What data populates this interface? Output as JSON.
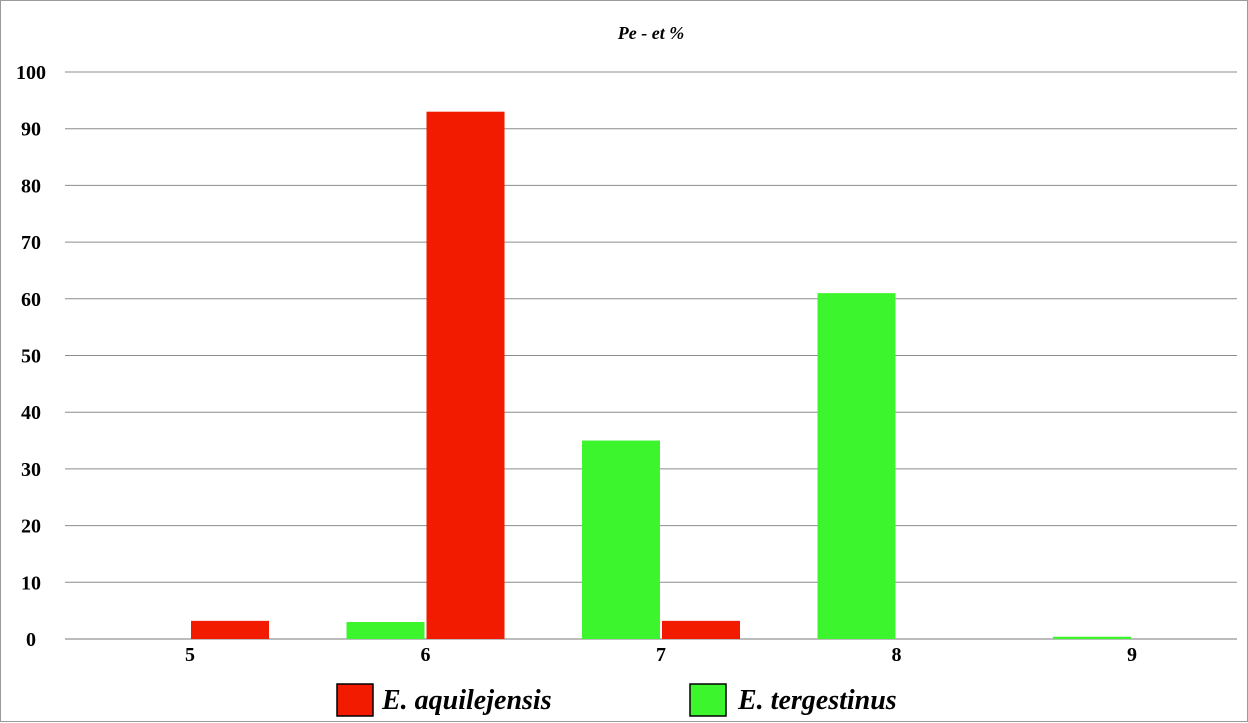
{
  "chart_data": {
    "type": "bar",
    "title": "Pe - et %",
    "xlabel": "",
    "ylabel": "",
    "categories": [
      "5",
      "6",
      "7",
      "8",
      "9"
    ],
    "ylim": [
      0,
      100
    ],
    "yticks": [
      0,
      10,
      20,
      30,
      40,
      50,
      60,
      70,
      80,
      90,
      100
    ],
    "grid": true,
    "legend_position": "bottom",
    "series": [
      {
        "name": "E. aquilejensis",
        "color": "#f21b00",
        "values": [
          3.2,
          93,
          3.2,
          0,
          0
        ]
      },
      {
        "name": "E. tergestinus",
        "color": "#3cf52c",
        "values": [
          0,
          3,
          35,
          61,
          0.4
        ]
      }
    ]
  }
}
